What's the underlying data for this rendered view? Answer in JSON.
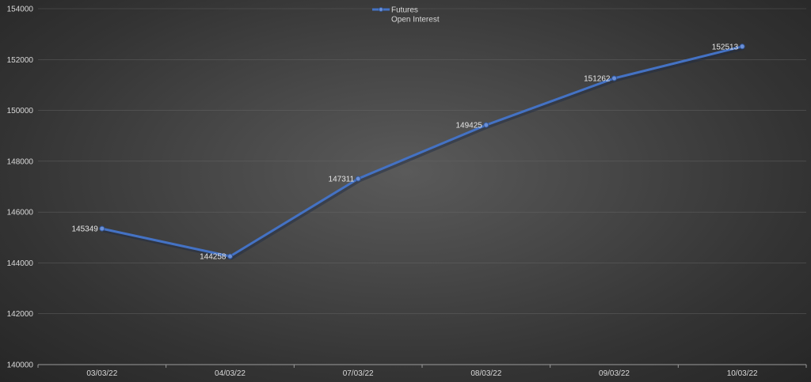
{
  "chart_data": {
    "type": "line",
    "categories": [
      "03/03/22",
      "04/03/22",
      "07/03/22",
      "08/03/22",
      "09/03/22",
      "10/03/22"
    ],
    "series": [
      {
        "name": "Futures Open Interest",
        "values": [
          145349,
          144258,
          147311,
          149425,
          151262,
          152513
        ],
        "color": "#4472c4"
      }
    ],
    "legend": {
      "position": "top",
      "lines": [
        "Futures",
        "Open Interest"
      ]
    },
    "y_ticks": [
      140000,
      142000,
      144000,
      146000,
      148000,
      150000,
      152000,
      154000
    ],
    "ylim": [
      140000,
      154000
    ],
    "grid": true,
    "data_labels": true,
    "colors": {
      "line": "#4472c4",
      "grid": "#6a6a6a",
      "axis": "#9a9a9a",
      "text": "#d9d9d9"
    }
  }
}
